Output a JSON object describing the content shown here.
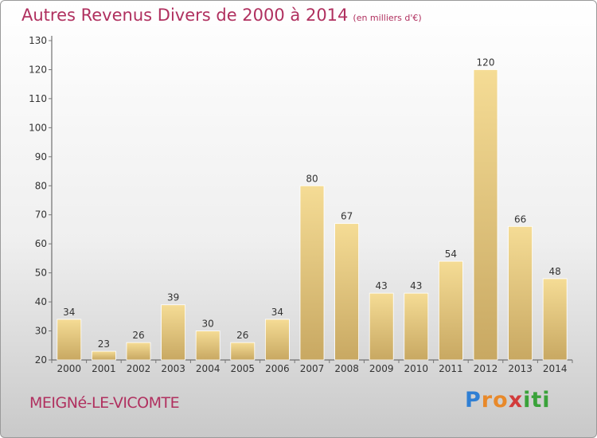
{
  "header": {
    "title": "Autres Revenus Divers de 2000 à 2014",
    "unit": "(en milliers d'€)"
  },
  "footer": {
    "commune": "MEIGNé-LE-VICOMTE",
    "logo_letters": [
      {
        "char": "P",
        "color": "#2f7fd4"
      },
      {
        "char": "r",
        "color": "#e8892a"
      },
      {
        "char": "o",
        "color": "#e8892a"
      },
      {
        "char": "x",
        "color": "#d23b3b"
      },
      {
        "char": "i",
        "color": "#3aa23a"
      },
      {
        "char": "t",
        "color": "#3aa23a"
      },
      {
        "char": "i",
        "color": "#3aa23a"
      }
    ]
  },
  "colors": {
    "bar_light": "#f5dc95",
    "bar_dark": "#c8a862",
    "axis": "#555555",
    "grid_tick": "#777777",
    "title": "#b0305f"
  },
  "chart_data": {
    "type": "bar",
    "title": "Autres Revenus Divers de 2000 à 2014",
    "subtitle": "(en milliers d'€)",
    "categories": [
      "2000",
      "2001",
      "2002",
      "2003",
      "2004",
      "2005",
      "2006",
      "2007",
      "2008",
      "2009",
      "2010",
      "2011",
      "2012",
      "2013",
      "2014"
    ],
    "values": [
      34,
      23,
      26,
      39,
      30,
      26,
      34,
      80,
      67,
      43,
      43,
      54,
      120,
      66,
      48
    ],
    "ylim": [
      20,
      130
    ],
    "yticks": [
      20,
      30,
      40,
      50,
      60,
      70,
      80,
      90,
      100,
      110,
      120,
      130
    ],
    "grid": false,
    "data_labels": true
  }
}
